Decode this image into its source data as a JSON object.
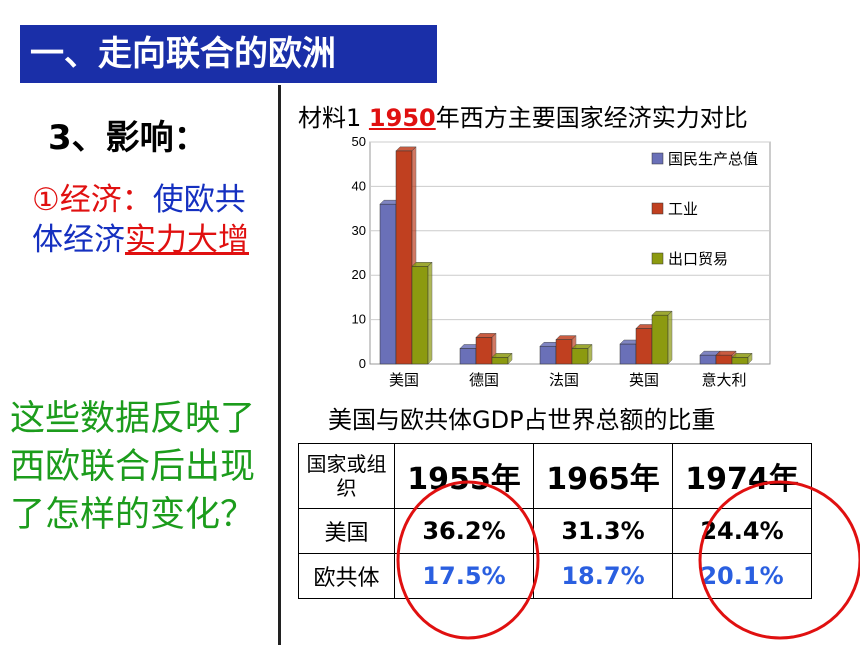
{
  "title": "一、走向联合的欧洲",
  "section": "3、影响：",
  "economy": {
    "prefix": "①经济：",
    "text": "使欧共体经济",
    "highlight": "实力大增"
  },
  "question": "这些数据反映了西欧联合后出现了怎样的变化？",
  "material": {
    "label": "材料1",
    "year": "1950",
    "rest": "年西方主要国家经济实力对比"
  },
  "colors": {
    "title_bg": "#1a2fa8",
    "series": [
      "#6a70b8",
      "#c04020",
      "#8c9a10"
    ],
    "circle": "#e01010"
  },
  "chart_data": {
    "type": "bar",
    "categories": [
      "美国",
      "德国",
      "法国",
      "英国",
      "意大利"
    ],
    "series": [
      {
        "name": "国民生产总值",
        "values": [
          36,
          3.5,
          4,
          4.5,
          2
        ]
      },
      {
        "name": "工业",
        "values": [
          48,
          6,
          5.5,
          8,
          2
        ]
      },
      {
        "name": "出口贸易",
        "values": [
          22,
          1.5,
          3.5,
          11,
          1.5
        ]
      }
    ],
    "ylim": [
      0,
      50
    ],
    "yticks": [
      "0",
      "10",
      "20",
      "30",
      "40",
      "50"
    ],
    "grid": true,
    "legend": "right"
  },
  "table": {
    "title": "美国与欧共体GDP占世界总额的比重",
    "header": [
      "国家或组织",
      "1955年",
      "1965年",
      "1974年"
    ],
    "rows": [
      {
        "label": "美国",
        "values": [
          "36.2%",
          "31.3%",
          "24.4%"
        ]
      },
      {
        "label": "欧共体",
        "values": [
          "17.5%",
          "18.7%",
          "20.1%"
        ]
      }
    ]
  }
}
